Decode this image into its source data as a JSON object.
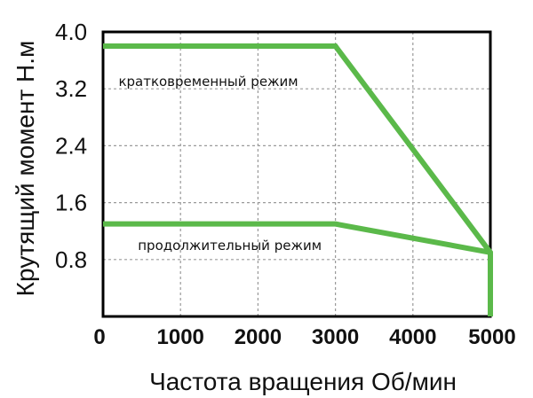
{
  "chart_data": {
    "type": "line",
    "ylabel": "Крутящий момент Н.м",
    "xlabel": "Частота вращения Об/мин",
    "x_ticks": [
      "0",
      "1000",
      "2000",
      "3000",
      "4000",
      "5000"
    ],
    "y_ticks": [
      "0.8",
      "1.6",
      "2.4",
      "3.2",
      "4.0"
    ],
    "xlim": [
      0,
      5000
    ],
    "ylim": [
      0,
      4.0
    ],
    "grid": true,
    "series_color": "#5bb94a",
    "series": [
      {
        "name": "кратковременный режим",
        "x": [
          0,
          3000,
          5000,
          5000
        ],
        "y": [
          3.8,
          3.8,
          0.9,
          0
        ]
      },
      {
        "name": "продолжительный режим",
        "x": [
          0,
          3000,
          5000
        ],
        "y": [
          1.3,
          1.3,
          0.9
        ]
      }
    ],
    "annotations": [
      {
        "text": "кратковременный режим",
        "x": 200,
        "y": 3.3
      },
      {
        "text": "продолжительный режим",
        "x": 450,
        "y": 1.0
      }
    ]
  }
}
